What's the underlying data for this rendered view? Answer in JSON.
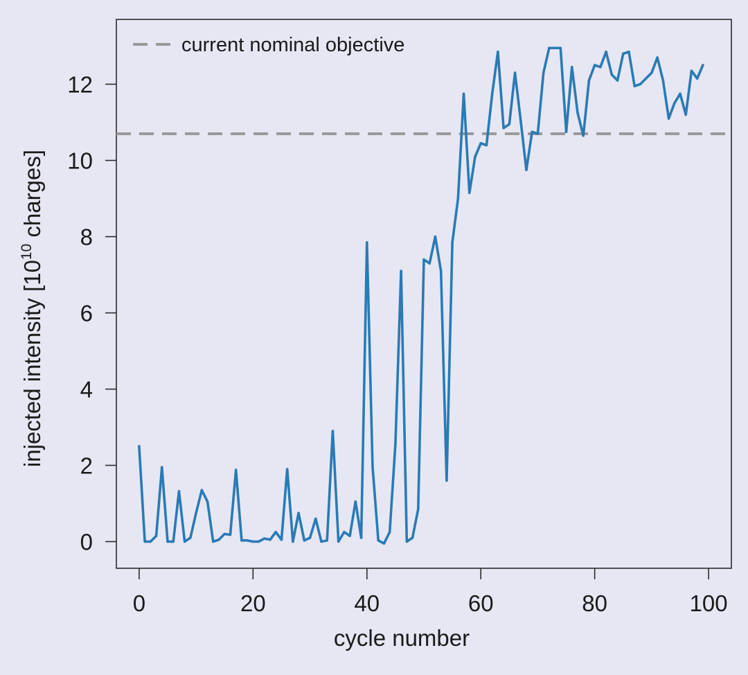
{
  "chart_data": {
    "type": "line",
    "title": "",
    "xlabel": "cycle number",
    "ylabel": {
      "prefix": "injected intensity [10",
      "exponent": "10",
      "suffix": " charges]"
    },
    "xlim": [
      -4,
      104
    ],
    "ylim": [
      -0.7,
      13.7
    ],
    "xticks": [
      0,
      20,
      40,
      60,
      80,
      100
    ],
    "xtick_labels": [
      "0",
      "20",
      "40",
      "60",
      "80",
      "100"
    ],
    "yticks": [
      0,
      2,
      4,
      6,
      8,
      10,
      12
    ],
    "ytick_labels": [
      "0",
      "2",
      "4",
      "6",
      "8",
      "10",
      "12"
    ],
    "grid": false,
    "legend": {
      "position": "top-left",
      "entries": [
        "current nominal objective"
      ]
    },
    "reference_line": {
      "name": "current nominal objective",
      "y": 10.7,
      "style": "dashed",
      "color": "#999999"
    },
    "series": [
      {
        "name": "injected intensity",
        "color": "#2a7ab5",
        "x": [
          0,
          1,
          2,
          3,
          4,
          5,
          6,
          7,
          8,
          9,
          10,
          11,
          12,
          13,
          14,
          15,
          16,
          17,
          18,
          19,
          20,
          21,
          22,
          23,
          24,
          25,
          26,
          27,
          28,
          29,
          30,
          31,
          32,
          33,
          34,
          35,
          36,
          37,
          38,
          39,
          40,
          41,
          42,
          43,
          44,
          45,
          46,
          47,
          48,
          49,
          50,
          51,
          52,
          53,
          54,
          55,
          56,
          57,
          58,
          59,
          60,
          61,
          62,
          63,
          64,
          65,
          66,
          67,
          68,
          69,
          70,
          71,
          72,
          73,
          74,
          75,
          76,
          77,
          78,
          79,
          80,
          81,
          82,
          83,
          84,
          85,
          86,
          87,
          88,
          89,
          90,
          91,
          92,
          93,
          94,
          95,
          96,
          97,
          98,
          99
        ],
        "values": [
          2.5,
          0.0,
          0.0,
          0.15,
          1.95,
          0.0,
          0.0,
          1.32,
          0.0,
          0.1,
          0.75,
          1.35,
          1.05,
          0.0,
          0.05,
          0.2,
          0.18,
          1.88,
          0.03,
          0.03,
          0.0,
          0.0,
          0.08,
          0.05,
          0.25,
          0.05,
          1.9,
          0.0,
          0.75,
          0.03,
          0.1,
          0.6,
          0.0,
          0.03,
          2.9,
          0.0,
          0.25,
          0.15,
          1.05,
          0.1,
          7.85,
          1.95,
          0.03,
          -0.05,
          0.25,
          2.55,
          7.1,
          0.0,
          0.1,
          0.85,
          7.4,
          7.3,
          8.0,
          7.1,
          1.6,
          7.85,
          9.0,
          11.75,
          9.15,
          10.1,
          10.45,
          10.4,
          11.75,
          12.85,
          10.85,
          10.95,
          12.3,
          11.05,
          9.75,
          10.75,
          10.7,
          12.3,
          12.95,
          12.95,
          12.95,
          10.75,
          12.45,
          11.25,
          10.65,
          12.1,
          12.5,
          12.45,
          12.85,
          12.25,
          12.1,
          12.8,
          12.85,
          11.95,
          12.0,
          12.15,
          12.3,
          12.7,
          12.1,
          11.1,
          11.5,
          11.75,
          11.2,
          12.35,
          12.15,
          12.5
        ]
      }
    ]
  }
}
